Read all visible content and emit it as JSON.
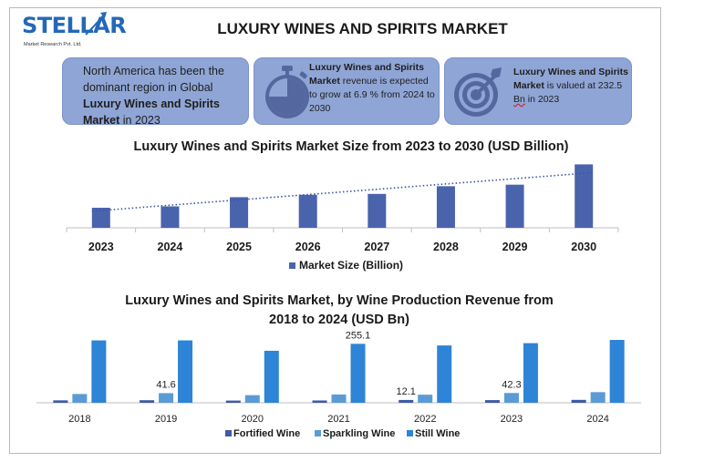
{
  "header": {
    "logo_text": "STELLAR",
    "logo_subtext": "Market Research Pvt. Ltd.",
    "title": "LUXURY WINES AND SPIRITS MARKET"
  },
  "cards": {
    "card1": {
      "pre": "North America has been the dominant region in Global ",
      "bold": "Luxury Wines and Spirits Market",
      "post": " in 2023"
    },
    "card2": {
      "bold": "Luxury Wines and Spirits Market",
      "post": " revenue is expected to grow at 6.9 % from 2024 to 2030",
      "icon": "stopwatch-icon"
    },
    "card3": {
      "bold": "Luxury Wines and Spirits Market",
      "mid": " is valued at 232.5 ",
      "bn": "Bn",
      "post": " in 2023",
      "icon": "target-icon"
    }
  },
  "colors": {
    "card_bg": "#8fa5d6",
    "bar_dark": "#4a63ad",
    "fortified": "#3f5aa6",
    "sparkling": "#5b9bd5",
    "still": "#2e84d6"
  },
  "chart_data": [
    {
      "type": "bar",
      "title": "Luxury Wines and Spirits Market Size from 2023 to 2030 (USD Billion)",
      "categories": [
        "2023",
        "2024",
        "2025",
        "2026",
        "2027",
        "2028",
        "2029",
        "2030"
      ],
      "series": [
        {
          "name": "Market Size (Billion)",
          "values": [
            232.5,
            248.5,
            355,
            383,
            393,
            482,
            500,
            735
          ]
        }
      ],
      "trendline": "dotted linear",
      "ylim": [
        0,
        750
      ],
      "y_axis_shown": false,
      "legend": "bottom"
    },
    {
      "type": "bar",
      "title": "Luxury Wines and Spirits Market, by Wine Production Revenue from 2018 to 2024 (USD Bn)",
      "categories": [
        "2018",
        "2019",
        "2020",
        "2021",
        "2022",
        "2023",
        "2024"
      ],
      "series": [
        {
          "name": "Fortified Wine",
          "values": [
            10.5,
            11.0,
            9.5,
            10.0,
            12.1,
            11.5,
            12.5
          ]
        },
        {
          "name": "Sparkling Wine",
          "values": [
            38.0,
            41.6,
            33.0,
            36.0,
            35.0,
            42.3,
            46.0
          ]
        },
        {
          "name": "Still Wine",
          "values": [
            270,
            270,
            225,
            255.1,
            248,
            258,
            272
          ]
        }
      ],
      "data_labels": [
        {
          "category": "2019",
          "series": "Sparkling Wine",
          "text": "41.6"
        },
        {
          "category": "2021",
          "series": "Still Wine",
          "text": "255.1"
        },
        {
          "category": "2022",
          "series": "Fortified Wine",
          "text": "12.1"
        },
        {
          "category": "2023",
          "series": "Sparkling Wine",
          "text": "42.3"
        }
      ],
      "ylim": [
        0,
        280
      ],
      "y_axis_shown": false,
      "legend": "bottom"
    }
  ]
}
